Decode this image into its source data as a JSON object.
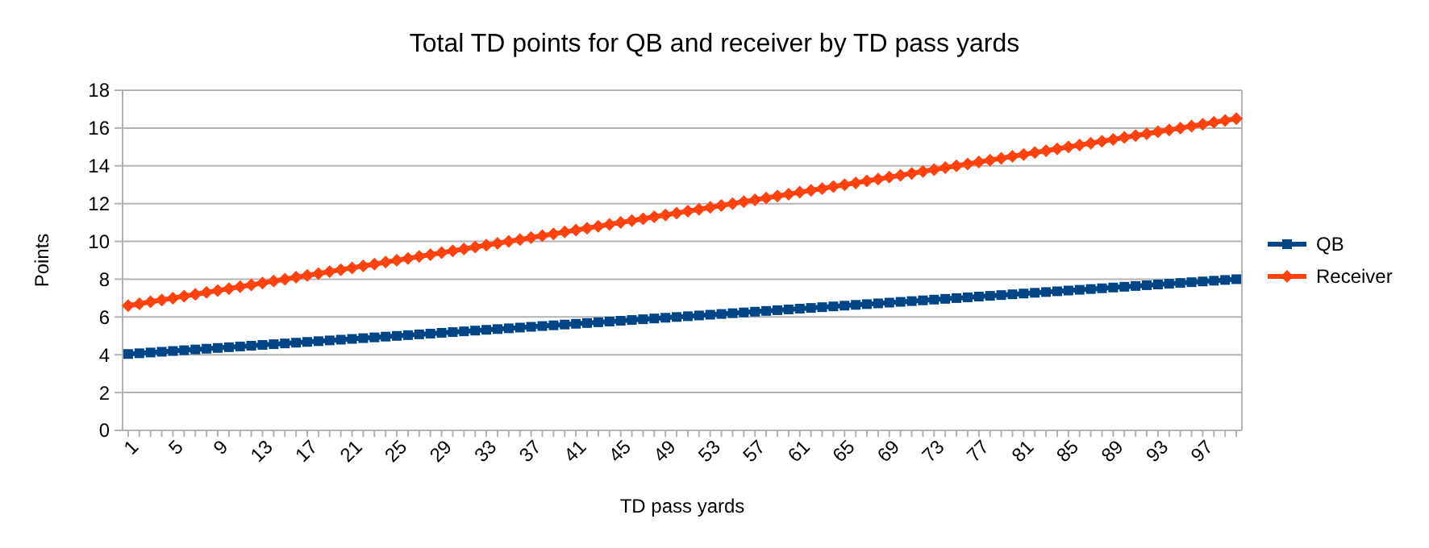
{
  "chart_data": {
    "type": "line",
    "title": "Total TD points for QB and receiver by TD pass yards",
    "xlabel": "TD pass yards",
    "ylabel": "Points",
    "categories": [
      "1",
      null,
      null,
      null,
      "5",
      null,
      null,
      null,
      "9",
      null,
      null,
      null,
      "13",
      null,
      null,
      null,
      "17",
      null,
      null,
      null,
      "21",
      null,
      null,
      null,
      "25",
      null,
      null,
      null,
      "29",
      null,
      null,
      null,
      "33",
      null,
      null,
      null,
      "37",
      null,
      null,
      null,
      "41",
      null,
      null,
      null,
      "45",
      null,
      null,
      null,
      "49",
      null,
      null,
      null,
      "53",
      null,
      null,
      null,
      "57",
      null,
      null,
      null,
      "61",
      null,
      null,
      null,
      "65",
      null,
      null,
      null,
      "69",
      null,
      null,
      null,
      "73",
      null,
      null,
      null,
      "77",
      null,
      null,
      null,
      "81",
      null,
      null,
      null,
      "85",
      null,
      null,
      null,
      "89",
      null,
      null,
      null,
      "93",
      null,
      null,
      null,
      "97",
      null,
      null,
      null
    ],
    "ylim": [
      0,
      18
    ],
    "yticks": [
      0,
      2,
      4,
      6,
      8,
      10,
      12,
      14,
      16,
      18
    ],
    "grid": "y",
    "legend": "right",
    "series": [
      {
        "name": "QB",
        "color": "#004586",
        "marker": "square",
        "values": [
          4.04,
          4.08,
          4.12,
          4.16,
          4.2,
          4.24,
          4.28,
          4.32,
          4.36,
          4.4,
          4.44,
          4.48,
          4.52,
          4.56,
          4.6,
          4.64,
          4.68,
          4.72,
          4.76,
          4.8,
          4.84,
          4.88,
          4.92,
          4.96,
          5,
          5.04,
          5.08,
          5.12,
          5.16,
          5.2,
          5.24,
          5.28,
          5.32,
          5.36,
          5.4,
          5.44,
          5.48,
          5.52,
          5.56,
          5.6,
          5.64,
          5.68,
          5.72,
          5.76,
          5.8,
          5.84,
          5.88,
          5.92,
          5.96,
          6,
          6.04,
          6.08,
          6.12,
          6.16,
          6.2,
          6.24,
          6.28,
          6.32,
          6.36,
          6.4,
          6.44,
          6.48,
          6.52,
          6.56,
          6.6,
          6.64,
          6.68,
          6.72,
          6.76,
          6.8,
          6.84,
          6.88,
          6.92,
          6.96,
          7,
          7.04,
          7.08,
          7.12,
          7.16,
          7.2,
          7.24,
          7.28,
          7.32,
          7.36,
          7.4,
          7.44,
          7.48,
          7.52,
          7.56,
          7.6,
          7.64,
          7.68,
          7.72,
          7.76,
          7.8,
          7.84,
          7.88,
          7.92,
          7.96,
          8
        ]
      },
      {
        "name": "Receiver",
        "color": "#ff420e",
        "marker": "diamond",
        "values": [
          6.6,
          6.7,
          6.8,
          6.9,
          7,
          7.1,
          7.2,
          7.3,
          7.4,
          7.5,
          7.6,
          7.7,
          7.8,
          7.9,
          8,
          8.1,
          8.2,
          8.3,
          8.4,
          8.5,
          8.6,
          8.7,
          8.8,
          8.9,
          9,
          9.1,
          9.2,
          9.3,
          9.4,
          9.5,
          9.6,
          9.7,
          9.8,
          9.9,
          10,
          10.1,
          10.2,
          10.3,
          10.4,
          10.5,
          10.6,
          10.7,
          10.8,
          10.9,
          11,
          11.1,
          11.2,
          11.3,
          11.4,
          11.5,
          11.6,
          11.7,
          11.8,
          11.9,
          12,
          12.1,
          12.2,
          12.3,
          12.4,
          12.5,
          12.6,
          12.7,
          12.8,
          12.9,
          13,
          13.1,
          13.2,
          13.3,
          13.4,
          13.5,
          13.6,
          13.7,
          13.8,
          13.9,
          14,
          14.1,
          14.2,
          14.3,
          14.4,
          14.5,
          14.6,
          14.7,
          14.8,
          14.9,
          15,
          15.1,
          15.2,
          15.3,
          15.4,
          15.5,
          15.6,
          15.7,
          15.8,
          15.9,
          16,
          16.1,
          16.2,
          16.3,
          16.4,
          16.5
        ]
      }
    ]
  }
}
